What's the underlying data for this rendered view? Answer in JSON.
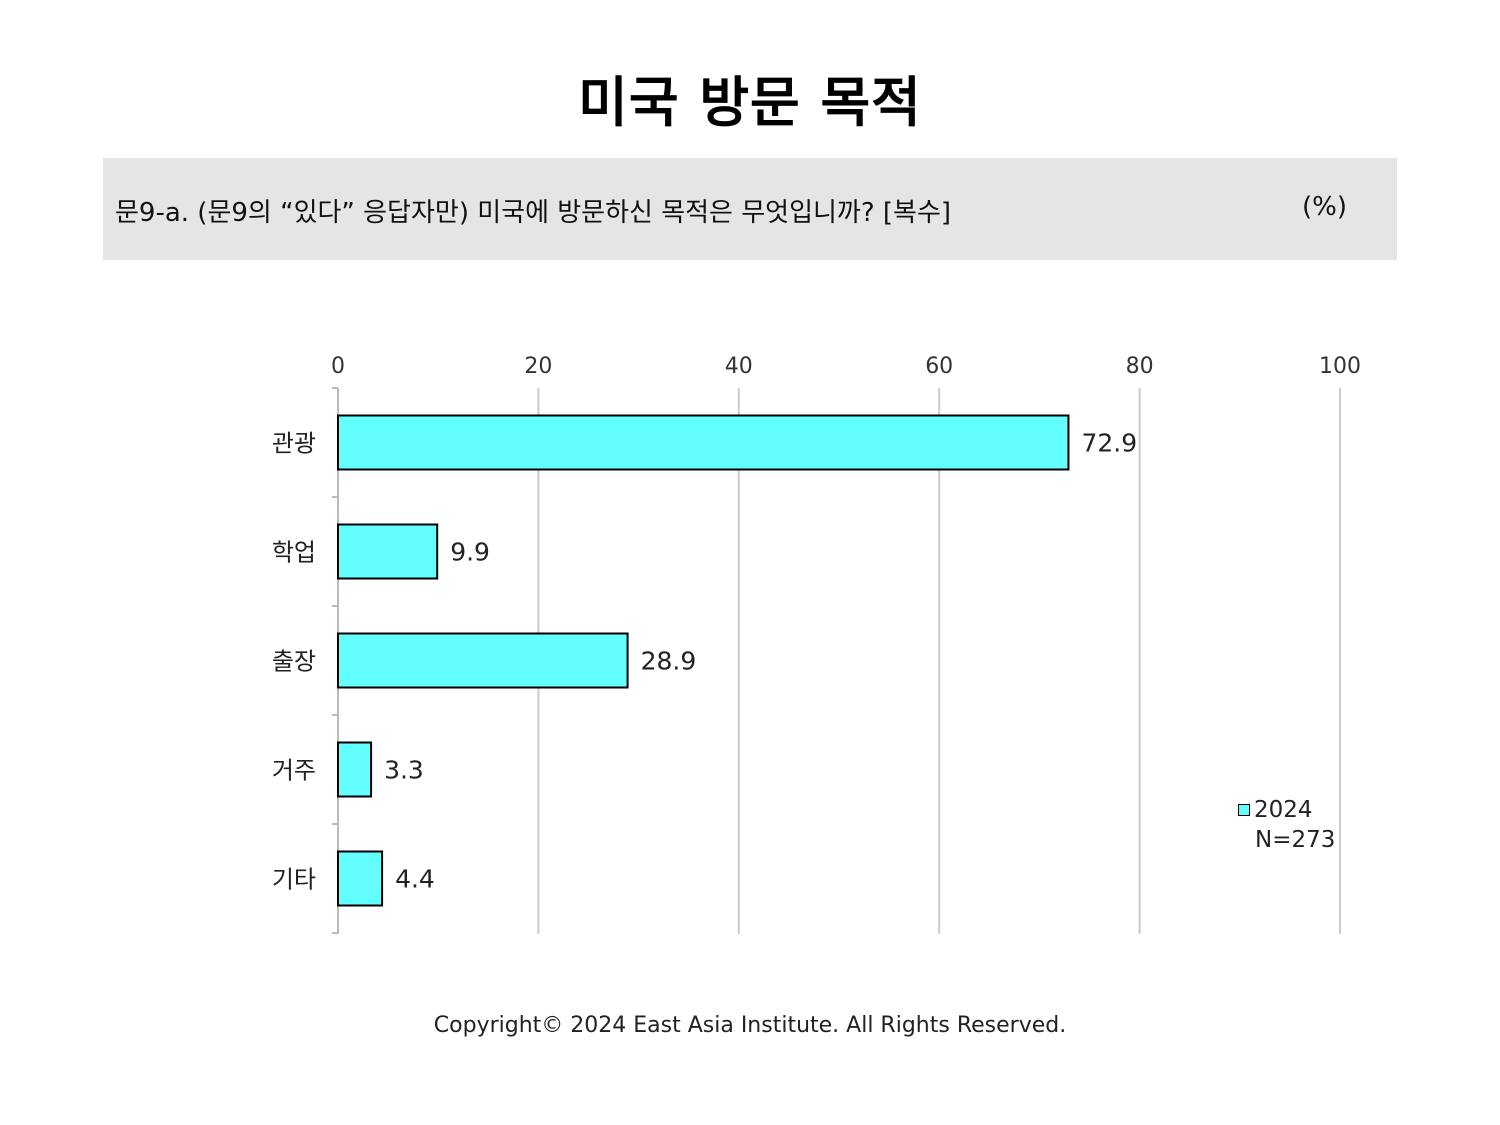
{
  "title": "미국 방문 목적",
  "question": {
    "text": "문9-a. (문9의 “있다” 응답자만) 미국에 방문하신 목적은 무엇입니까? [복수]",
    "unit": "(%)"
  },
  "chart_data": {
    "type": "bar",
    "orientation": "horizontal",
    "categories": [
      "관광",
      "학업",
      "출장",
      "거주",
      "기타"
    ],
    "series": [
      {
        "name": "2024",
        "values": [
          72.9,
          9.9,
          28.9,
          3.3,
          4.4
        ]
      }
    ],
    "xlim": [
      0,
      100
    ],
    "ticks": [
      0,
      20,
      40,
      60,
      80,
      100
    ],
    "grid": true,
    "legend_position": "bottom-right",
    "colors": {
      "bar": "#63ffff",
      "bar_border": "#000000",
      "grid": "#cccccc"
    }
  },
  "legend": {
    "series_label": "2024",
    "sample": "N=273"
  },
  "footer": {
    "copyright": "Copyright© 2024 East Asia Institute. All Rights Reserved."
  }
}
